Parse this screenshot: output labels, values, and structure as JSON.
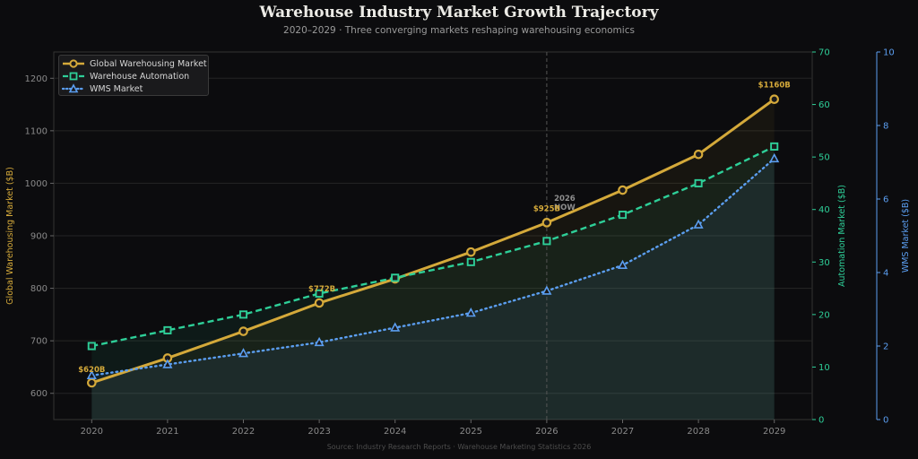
{
  "title": "Warehouse Industry Market Growth Trajectory",
  "subtitle": "2020–2029 · Three converging markets reshaping warehousing economics",
  "source": "Source: Industry Research Reports · Warehouse Marketing Statistics 2026",
  "colors": {
    "background": "#0c0c0e",
    "global": "#d4a93a",
    "automation": "#2ecf98",
    "wms": "#5b9ef0",
    "grid": "#252525",
    "tick": "#8a8a8a"
  },
  "chart_data": {
    "type": "line",
    "title": "Warehouse Industry Market Growth Trajectory",
    "x": [
      2020,
      2021,
      2022,
      2023,
      2024,
      2025,
      2026,
      2027,
      2028,
      2029
    ],
    "xlim": [
      2019.5,
      2029.5
    ],
    "series": [
      {
        "name": "Global Warehousing Market",
        "axis": "left",
        "marker": "circle",
        "line_style": "solid",
        "fill_area": true,
        "values": [
          620,
          667,
          718,
          772,
          818,
          869,
          925,
          987,
          1055,
          1160
        ]
      },
      {
        "name": "Warehouse Automation",
        "axis": "right",
        "marker": "square",
        "line_style": "dashed",
        "fill_area": true,
        "values": [
          14,
          17,
          20,
          24,
          27,
          30,
          34,
          39,
          45,
          52
        ]
      },
      {
        "name": "WMS Market",
        "axis": "right2",
        "marker": "triangle",
        "line_style": "dotted",
        "fill_area": true,
        "values": [
          1.2,
          1.5,
          1.8,
          2.1,
          2.5,
          2.9,
          3.5,
          4.2,
          5.3,
          7.1
        ]
      }
    ],
    "axes": {
      "left": {
        "label": "Global Warehousing Market ($B)",
        "ylim": [
          550,
          1250
        ],
        "ticks": [
          600,
          700,
          800,
          900,
          1000,
          1100,
          1200
        ]
      },
      "right": {
        "label": "Automation Market ($B)",
        "ylim": [
          0,
          70
        ],
        "ticks": [
          0,
          10,
          20,
          30,
          40,
          50,
          60,
          70
        ]
      },
      "right2": {
        "label": "WMS Market ($B)",
        "ylim": [
          0,
          10
        ],
        "ticks": [
          0,
          2,
          4,
          6,
          8,
          10
        ]
      }
    },
    "annotations": [
      {
        "text": "$620B",
        "x": 2020,
        "y": 620
      },
      {
        "text": "$772B",
        "x": 2023,
        "y": 772
      },
      {
        "text": "$925B",
        "x": 2026,
        "y": 925
      },
      {
        "text": "$1160B",
        "x": 2029,
        "y": 1160
      }
    ],
    "reference_line": {
      "x": 2026,
      "label_line1": "2026",
      "label_line2": "NOW"
    },
    "grid": true,
    "legend_position": "top-left"
  }
}
